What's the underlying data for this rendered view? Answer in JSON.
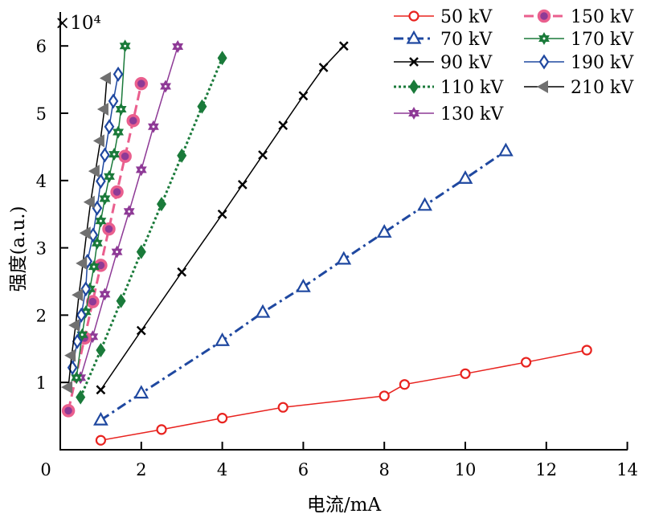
{
  "chart_data": {
    "type": "line",
    "xlabel": "电流/mA",
    "ylabel": "强度(a.u.)",
    "y_multiplier": "×10⁴",
    "xlim": [
      0,
      14
    ],
    "ylim": [
      0,
      6.1
    ],
    "xticks": [
      0,
      2,
      4,
      6,
      8,
      10,
      12,
      14
    ],
    "yticks": [
      1,
      2,
      3,
      4,
      5,
      6
    ],
    "grid": false,
    "legend_position": "top-right",
    "series": [
      {
        "name": "50 kV",
        "color": "#e8231f",
        "marker": "open-circle",
        "linestyle": "solid",
        "x": [
          1,
          2.5,
          4,
          5.5,
          8,
          8.5,
          10,
          11.5,
          13
        ],
        "y": [
          0.14,
          0.3,
          0.47,
          0.63,
          0.8,
          0.97,
          1.13,
          1.3,
          1.48
        ]
      },
      {
        "name": "70 kV",
        "color": "#1f48a0",
        "marker": "open-triangle-up",
        "linestyle": "dashdot",
        "x": [
          1,
          2,
          4,
          5,
          6,
          7,
          8,
          9,
          10,
          11
        ],
        "y": [
          0.44,
          0.84,
          1.62,
          2.04,
          2.42,
          2.83,
          3.23,
          3.63,
          4.03,
          4.44
        ]
      },
      {
        "name": "90 kV",
        "color": "#000000",
        "marker": "x",
        "linestyle": "solid",
        "x": [
          1,
          2,
          3,
          4,
          4.5,
          5,
          5.5,
          6,
          6.5,
          7
        ],
        "y": [
          0.89,
          1.77,
          2.64,
          3.5,
          3.94,
          4.38,
          4.82,
          5.26,
          5.68,
          6.0
        ]
      },
      {
        "name": "110 kV",
        "color": "#1a7a3a",
        "marker": "filled-diamond",
        "linestyle": "dotted",
        "x": [
          0.5,
          1,
          1.5,
          2,
          2.5,
          3,
          3.5,
          4
        ],
        "y": [
          0.78,
          1.48,
          2.21,
          2.94,
          3.65,
          4.37,
          5.1,
          5.82
        ]
      },
      {
        "name": "130 kV",
        "color": "#8e3a96",
        "marker": "hexagram",
        "linestyle": "solid",
        "x": [
          0.5,
          0.8,
          1.1,
          1.4,
          1.7,
          2.0,
          2.3,
          2.6,
          2.9
        ],
        "y": [
          1.07,
          1.68,
          2.31,
          2.94,
          3.54,
          4.16,
          4.8,
          5.4,
          5.99
        ]
      },
      {
        "name": "150 kV",
        "color": "#ea5f8e",
        "marker": "dot-circle",
        "linestyle": "dashed",
        "x": [
          0.2,
          0.6,
          0.8,
          1.0,
          1.2,
          1.4,
          1.6,
          1.8,
          2.0
        ],
        "y": [
          0.58,
          1.66,
          2.2,
          2.74,
          3.28,
          3.83,
          4.36,
          4.89,
          5.44
        ]
      },
      {
        "name": "170 kV",
        "color": "#1a7a3a",
        "marker": "hexagram",
        "linestyle": "solid",
        "x": [
          0.4,
          0.54,
          0.63,
          0.73,
          0.83,
          0.91,
          1.0,
          1.1,
          1.21,
          1.33,
          1.43,
          1.5,
          1.6
        ],
        "y": [
          1.07,
          1.71,
          2.05,
          2.39,
          2.72,
          3.07,
          3.4,
          3.73,
          4.06,
          4.39,
          4.72,
          5.06,
          6.0
        ]
      },
      {
        "name": "190 kV",
        "color": "#1f48a0",
        "marker": "open-diamond",
        "linestyle": "solid",
        "x": [
          0.3,
          0.42,
          0.52,
          0.63,
          0.67,
          0.81,
          0.91,
          1.0,
          1.1,
          1.21,
          1.31,
          1.43
        ],
        "y": [
          1.22,
          1.61,
          2.0,
          2.39,
          2.8,
          3.19,
          3.59,
          3.99,
          4.38,
          4.8,
          5.18,
          5.58
        ]
      },
      {
        "name": "210 kV",
        "color": "#707070",
        "marker": "filled-triangle-left",
        "linestyle": "solid",
        "x": [
          0.2,
          0.28,
          0.38,
          0.46,
          0.56,
          0.65,
          0.75,
          0.87,
          0.99,
          1.09,
          1.15
        ],
        "y": [
          0.93,
          1.4,
          1.85,
          2.3,
          2.77,
          3.22,
          3.68,
          4.14,
          4.59,
          5.06,
          5.52
        ]
      }
    ]
  }
}
